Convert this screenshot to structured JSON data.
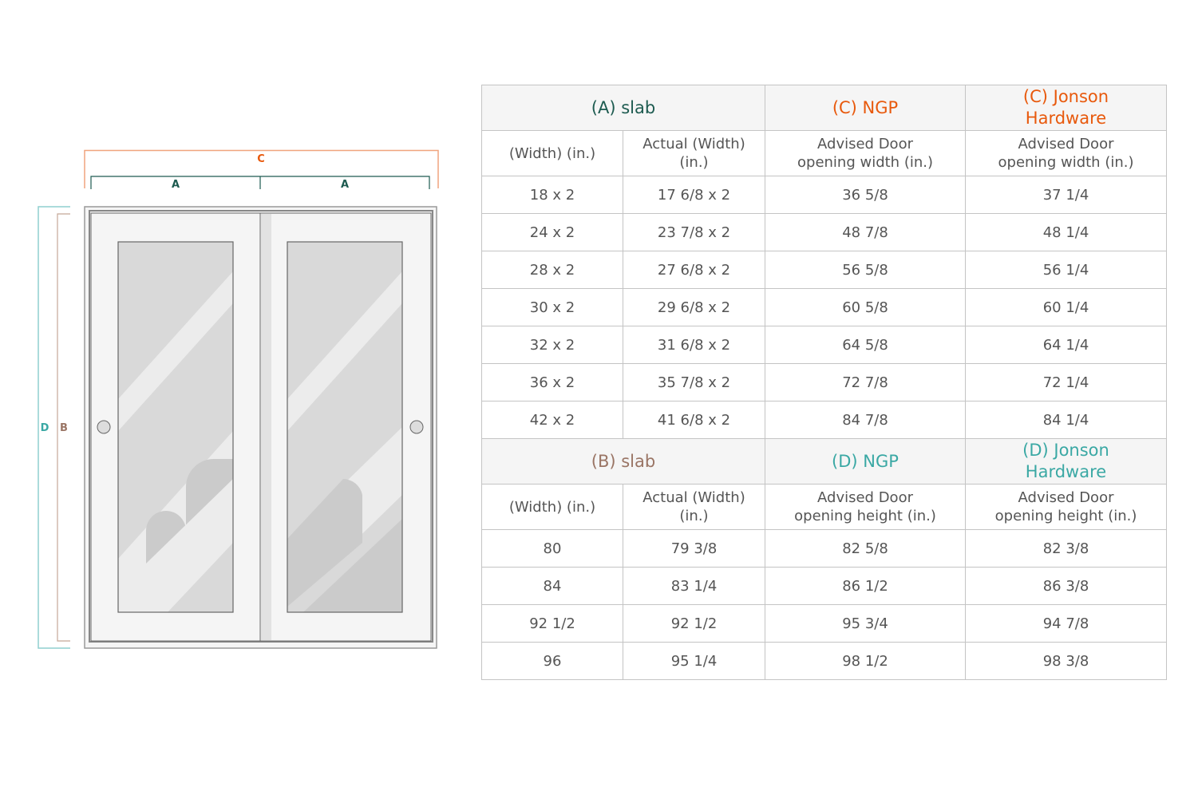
{
  "colors": {
    "A": "#1d5b50",
    "B": "#9a7565",
    "C": "#e8590c",
    "D": "#3aa8a4",
    "C_line": "#f0a47e",
    "D_line": "#8fcfcf",
    "B_line": "#c4a898"
  },
  "diagram": {
    "label_c": "C",
    "label_a_left": "A",
    "label_a_right": "A",
    "label_d": "D",
    "label_b": "B"
  },
  "width_table": {
    "headers": [
      {
        "text": "(A) slab",
        "color": "#1d5b50"
      },
      {
        "text": "(C) NGP",
        "color": "#e8590c"
      },
      {
        "text": "(C) Jonson Hardware",
        "color": "#e8590c"
      }
    ],
    "subheaders": [
      "(Width) (in.)",
      "Actual (Width) (in.)",
      "Advised Door opening width (in.)",
      "Advised Door opening width (in.)"
    ],
    "rows": [
      [
        "18 x 2",
        "17 6/8 x 2",
        "36 5/8",
        "37 1/4"
      ],
      [
        "24 x 2",
        "23 7/8 x 2",
        "48 7/8",
        "48 1/4"
      ],
      [
        "28 x 2",
        "27 6/8 x 2",
        "56 5/8",
        "56 1/4"
      ],
      [
        "30 x 2",
        "29 6/8 x 2",
        "60 5/8",
        "60 1/4"
      ],
      [
        "32 x 2",
        "31 6/8 x 2",
        "64 5/8",
        "64 1/4"
      ],
      [
        "36 x 2",
        "35 7/8 x 2",
        "72 7/8",
        "72 1/4"
      ],
      [
        "42 x 2",
        "41 6/8 x 2",
        "84 7/8",
        "84 1/4"
      ]
    ]
  },
  "height_table": {
    "headers": [
      {
        "text": "(B) slab",
        "color": "#9a7565"
      },
      {
        "text": "(D) NGP",
        "color": "#3aa8a4"
      },
      {
        "text": "(D) Jonson Hardware",
        "color": "#3aa8a4"
      }
    ],
    "subheaders": [
      "(Width) (in.)",
      "Actual (Width) (in.)",
      "Advised Door opening height (in.)",
      "Advised Door opening height (in.)"
    ],
    "rows": [
      [
        "80",
        "79 3/8",
        "82 5/8",
        "82 3/8"
      ],
      [
        "84",
        "83 1/4",
        "86 1/2",
        "86 3/8"
      ],
      [
        "92 1/2",
        "92 1/2",
        "95 3/4",
        "94 7/8"
      ],
      [
        "96",
        "95 1/4",
        "98 1/2",
        "98 3/8"
      ]
    ]
  }
}
